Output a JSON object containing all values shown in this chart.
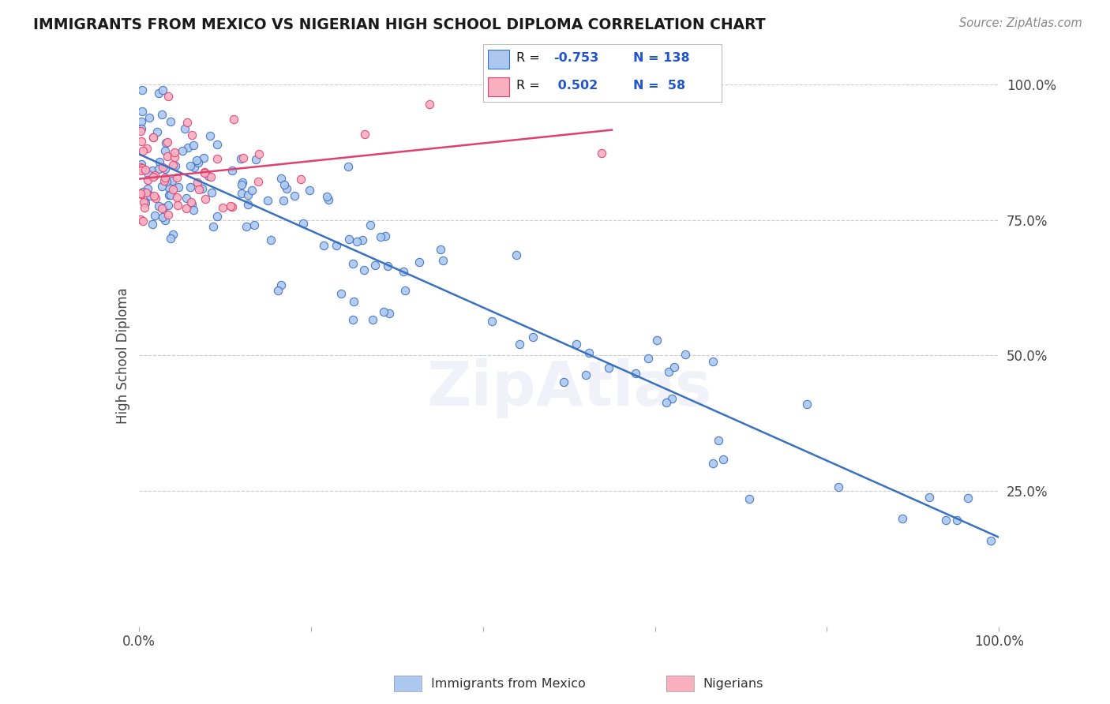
{
  "title": "IMMIGRANTS FROM MEXICO VS NIGERIAN HIGH SCHOOL DIPLOMA CORRELATION CHART",
  "source": "Source: ZipAtlas.com",
  "ylabel": "High School Diploma",
  "legend_label1": "Immigrants from Mexico",
  "legend_label2": "Nigerians",
  "color_mexico": "#adc8f0",
  "color_nigeria": "#f8b0c0",
  "color_mexico_line": "#3a70c0",
  "color_nigeria_line": "#e04070",
  "watermark": "ZipAtlas",
  "xlim": [
    0.0,
    1.0
  ],
  "ylim": [
    0.0,
    1.0
  ]
}
